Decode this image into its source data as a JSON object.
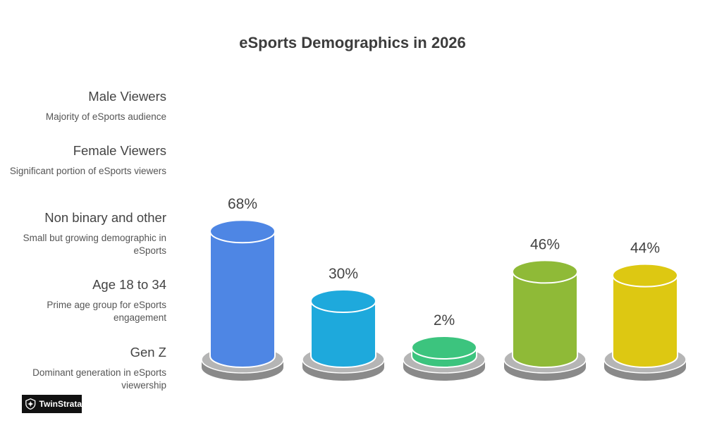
{
  "chart_data": {
    "type": "bar",
    "title": "eSports Demographics in 2026",
    "categories": [
      "Male Viewers",
      "Female Viewers",
      "Non binary and other",
      "Age 18 to 34",
      "Gen Z"
    ],
    "descriptions": [
      "Majority of eSports audience",
      "Significant portion of eSports viewers",
      "Small but growing demographic in eSports",
      "Prime age group for eSports engagement",
      "Dominant generation in eSports viewership"
    ],
    "values": [
      68,
      30,
      2,
      46,
      44
    ],
    "value_labels": [
      "68%",
      "30%",
      "2%",
      "46%",
      "44%"
    ],
    "colors": [
      "#4e86e4",
      "#1ea9dc",
      "#3cc47e",
      "#8fba37",
      "#ddc812"
    ],
    "unit": "%"
  },
  "logo": {
    "text": "TwinStrata",
    "icon": "shield-icon"
  }
}
